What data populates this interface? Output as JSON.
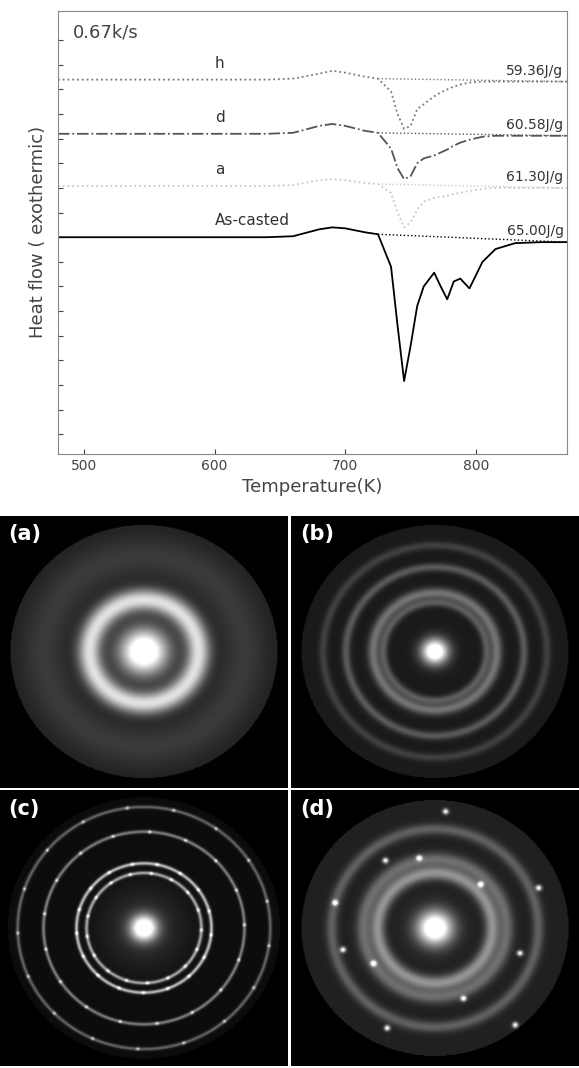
{
  "chart_data": {
    "type": "line",
    "annotations": [
      "0.67k/s"
    ],
    "x_label": "Temperature(K)",
    "y_label": "Heat flow ( exothermic)",
    "x": [
      480,
      520,
      560,
      600,
      640,
      660,
      680,
      690,
      700,
      715,
      725,
      735,
      740,
      745,
      750,
      755,
      760,
      768,
      773,
      778,
      783,
      788,
      795,
      805,
      815,
      830,
      850,
      870
    ],
    "series": [
      {
        "name": "As-casted",
        "color": "#000000",
        "line_style": "solid",
        "enthalpy": "65.00J/g",
        "values": [
          0,
          0,
          0,
          0,
          0,
          0.1,
          0.8,
          1.0,
          0.9,
          0.5,
          0.3,
          -3,
          -9,
          -14.6,
          -11,
          -7,
          -5,
          -3.6,
          -5,
          -6.3,
          -4.5,
          -4.2,
          -5.2,
          -2.5,
          -1.2,
          -0.6,
          -0.5,
          -0.5
        ]
      },
      {
        "name": "a",
        "color": "#c8c8c8",
        "line_style": "dotted",
        "enthalpy": "61.30J/g",
        "values": [
          5.2,
          5.2,
          5.2,
          5.2,
          5.2,
          5.3,
          5.8,
          5.9,
          5.8,
          5.5,
          5.4,
          4.5,
          2.5,
          1.0,
          1.5,
          2.8,
          3.6,
          4.0,
          4.1,
          4.2,
          4.4,
          4.5,
          4.7,
          4.9,
          5.0,
          5.0,
          5.0,
          5.0
        ]
      },
      {
        "name": "d",
        "color": "#555555",
        "line_style": "dashdot",
        "enthalpy": "60.58J/g",
        "values": [
          10.5,
          10.5,
          10.5,
          10.5,
          10.5,
          10.6,
          11.3,
          11.5,
          11.3,
          10.8,
          10.6,
          9.0,
          7.0,
          5.9,
          6.2,
          7.5,
          8.0,
          8.3,
          8.6,
          8.9,
          9.3,
          9.6,
          9.9,
          10.2,
          10.3,
          10.3,
          10.3,
          10.3
        ]
      },
      {
        "name": "h",
        "color": "#777777",
        "line_style": "dotted",
        "enthalpy": "59.36J/g",
        "values": [
          16,
          16,
          16,
          16,
          16,
          16.1,
          16.6,
          16.9,
          16.7,
          16.3,
          16.1,
          14.8,
          12.5,
          11.0,
          11.3,
          13.0,
          13.5,
          14.3,
          14.7,
          15.0,
          15.3,
          15.5,
          15.7,
          15.8,
          15.8,
          15.8,
          15.8,
          15.8
        ]
      }
    ],
    "xlim": [
      480,
      870
    ],
    "ylim": [
      -22,
      23
    ],
    "xticks": [
      500,
      600,
      700,
      800
    ],
    "yticks": [
      -20,
      -17.5,
      -15,
      -12.5,
      -10,
      -7.5,
      -5,
      -2.5,
      0,
      2.5,
      5,
      7.5,
      10,
      12.5,
      15,
      17.5,
      20
    ],
    "tick_labels": "x",
    "grid": false
  },
  "panels": {
    "labels": [
      "(a)",
      "(b)",
      "(c)",
      "(d)"
    ]
  }
}
